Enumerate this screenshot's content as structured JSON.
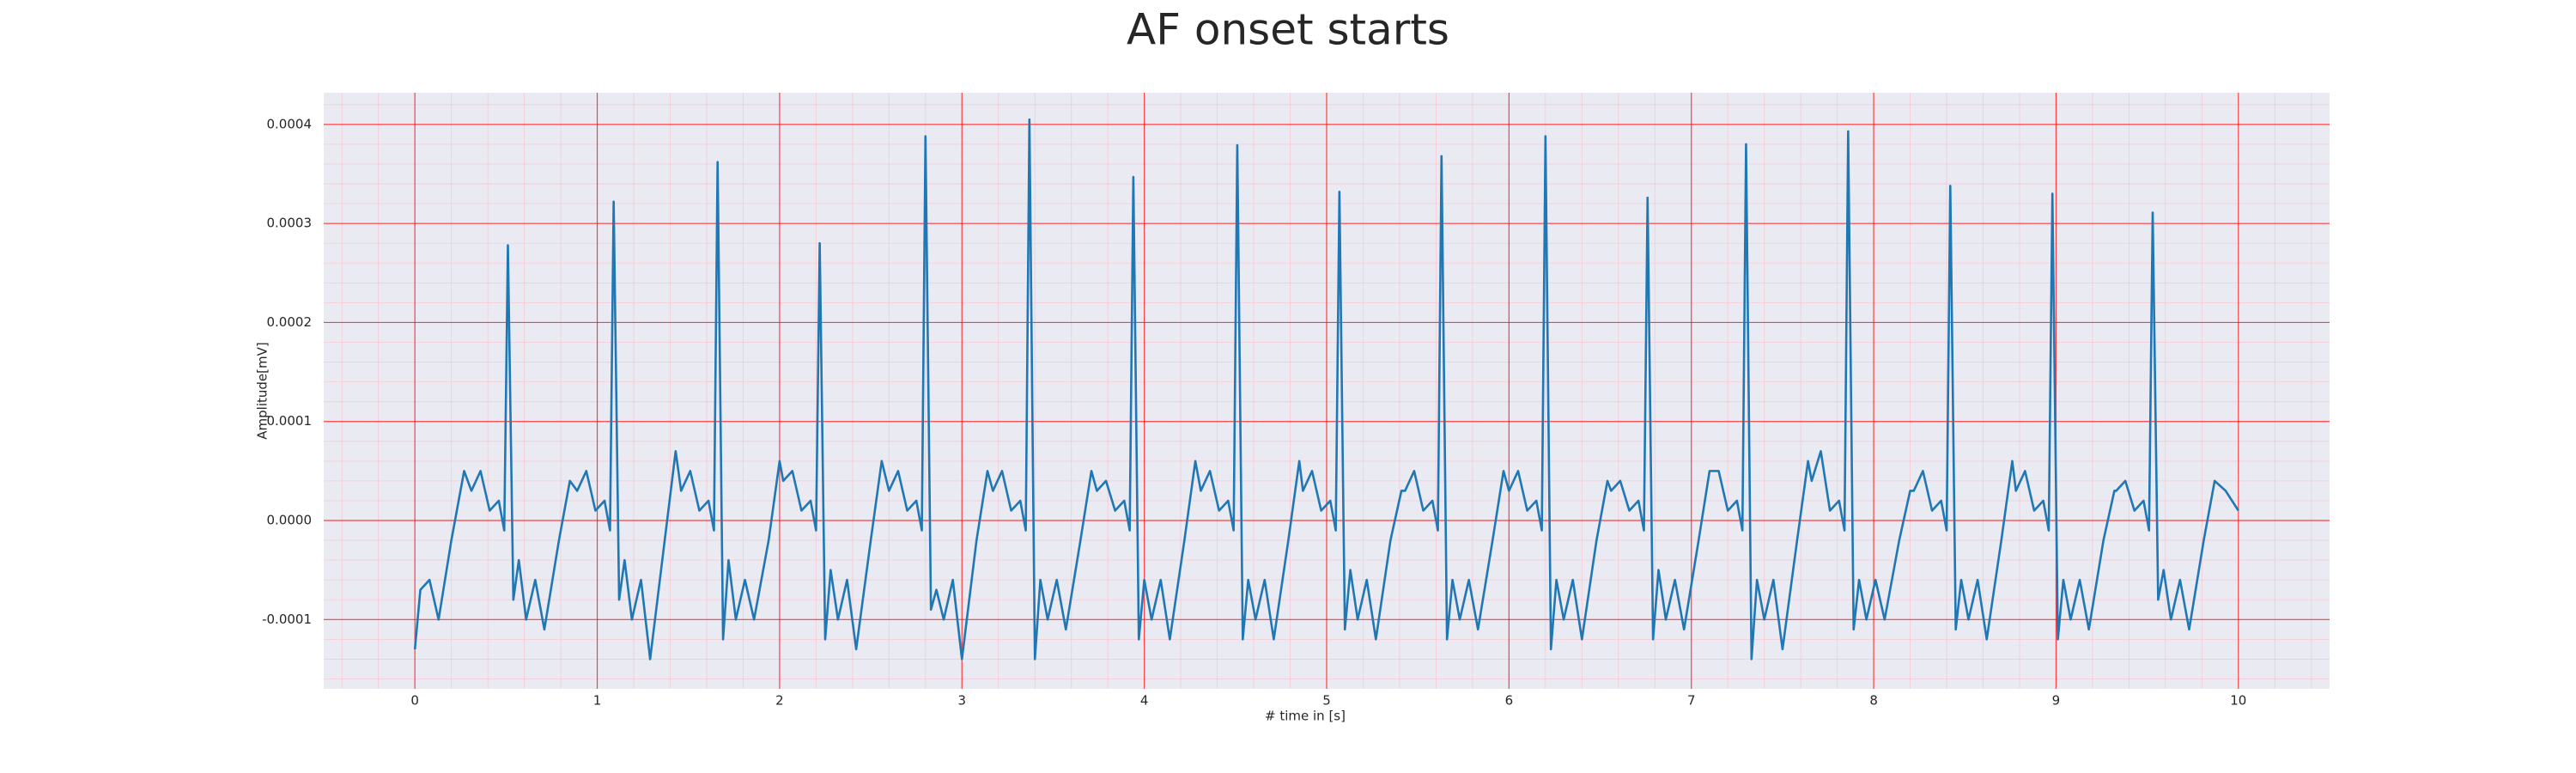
{
  "chart_data": {
    "type": "line",
    "title": "AF onset starts",
    "x_label": "# time in [s]",
    "y_label": "Amplitude[mV]",
    "color": "#1f77b4",
    "grid": true,
    "xlim": [
      -0.5,
      10.5
    ],
    "ylim": [
      -0.00017,
      0.000432
    ],
    "xticks": [
      0,
      1,
      2,
      3,
      4,
      5,
      6,
      7,
      8,
      9,
      10
    ],
    "yticks": [
      -0.0001,
      {
        "value": 0,
        "label": "0.0000"
      },
      0.0001,
      0.0002,
      0.0003,
      0.0004
    ],
    "x": [
      0,
      0.03,
      0.08,
      0.13,
      0.2,
      0.27,
      0.31,
      0.36,
      0.41,
      0.46,
      0.49,
      0.51,
      0.54,
      0.57,
      0.61,
      0.66,
      0.71,
      0.79,
      0.85,
      0.89,
      0.94,
      0.99,
      1.04,
      1.07,
      1.09,
      1.12,
      1.15,
      1.19,
      1.24,
      1.29,
      1.37,
      1.43,
      1.46,
      1.51,
      1.56,
      1.61,
      1.64,
      1.66,
      1.69,
      1.72,
      1.76,
      1.81,
      1.86,
      1.94,
      2.0,
      2.02,
      2.07,
      2.12,
      2.17,
      2.2,
      2.22,
      2.25,
      2.28,
      2.32,
      2.37,
      2.42,
      2.5,
      2.56,
      2.6,
      2.65,
      2.7,
      2.75,
      2.78,
      2.8,
      2.83,
      2.86,
      2.9,
      2.95,
      3.0,
      3.08,
      3.14,
      3.17,
      3.22,
      3.27,
      3.32,
      3.35,
      3.37,
      3.4,
      3.43,
      3.47,
      3.52,
      3.57,
      3.65,
      3.71,
      3.74,
      3.79,
      3.84,
      3.89,
      3.92,
      3.94,
      3.97,
      4.0,
      4.04,
      4.09,
      4.14,
      4.22,
      4.28,
      4.31,
      4.36,
      4.41,
      4.46,
      4.49,
      4.51,
      4.54,
      4.57,
      4.61,
      4.66,
      4.71,
      4.79,
      4.85,
      4.87,
      4.92,
      4.97,
      5.02,
      5.05,
      5.07,
      5.1,
      5.13,
      5.17,
      5.22,
      5.27,
      5.35,
      5.41,
      5.43,
      5.48,
      5.53,
      5.58,
      5.61,
      5.63,
      5.66,
      5.69,
      5.73,
      5.78,
      5.83,
      5.91,
      5.97,
      6.0,
      6.05,
      6.1,
      6.15,
      6.18,
      6.2,
      6.23,
      6.26,
      6.3,
      6.35,
      6.4,
      6.48,
      6.54,
      6.56,
      6.61,
      6.66,
      6.71,
      6.74,
      6.76,
      6.79,
      6.82,
      6.86,
      6.91,
      6.96,
      7.04,
      7.1,
      7.15,
      7.2,
      7.25,
      7.28,
      7.3,
      7.33,
      7.36,
      7.4,
      7.45,
      7.5,
      7.58,
      7.64,
      7.66,
      7.71,
      7.76,
      7.81,
      7.84,
      7.86,
      7.89,
      7.92,
      7.96,
      8.01,
      8.06,
      8.14,
      8.2,
      8.22,
      8.27,
      8.32,
      8.37,
      8.4,
      8.42,
      8.45,
      8.48,
      8.52,
      8.57,
      8.62,
      8.7,
      8.76,
      8.78,
      8.83,
      8.88,
      8.93,
      8.96,
      8.98,
      9.01,
      9.04,
      9.08,
      9.13,
      9.18,
      9.26,
      9.32,
      9.33,
      9.38,
      9.43,
      9.48,
      9.51,
      9.53,
      9.56,
      9.59,
      9.63,
      9.68,
      9.73,
      9.81,
      9.87,
      9.93,
      10.0
    ],
    "values": [
      -0.00013,
      -7e-05,
      -6e-05,
      -0.0001,
      -2e-05,
      5e-05,
      3e-05,
      5e-05,
      1e-05,
      2e-05,
      -1e-05,
      0.000278,
      -8e-05,
      -4e-05,
      -0.0001,
      -6e-05,
      -0.00011,
      -2e-05,
      4e-05,
      3e-05,
      5e-05,
      1e-05,
      2e-05,
      -1e-05,
      0.000322,
      -8e-05,
      -4e-05,
      -0.0001,
      -6e-05,
      -0.00014,
      -2e-05,
      7e-05,
      3e-05,
      5e-05,
      1e-05,
      2e-05,
      -1e-05,
      0.000362,
      -0.00012,
      -4e-05,
      -0.0001,
      -6e-05,
      -0.0001,
      -2e-05,
      6e-05,
      4e-05,
      5e-05,
      1e-05,
      2e-05,
      -1e-05,
      0.00028,
      -0.00012,
      -5e-05,
      -0.0001,
      -6e-05,
      -0.00013,
      -2e-05,
      6e-05,
      3e-05,
      5e-05,
      1e-05,
      2e-05,
      -1e-05,
      0.000388,
      -9e-05,
      -7e-05,
      -0.0001,
      -6e-05,
      -0.00014,
      -2e-05,
      5e-05,
      3e-05,
      5e-05,
      1e-05,
      2e-05,
      -1e-05,
      0.000405,
      -0.00014,
      -6e-05,
      -0.0001,
      -6e-05,
      -0.00011,
      -2e-05,
      5e-05,
      3e-05,
      4e-05,
      1e-05,
      2e-05,
      -1e-05,
      0.000347,
      -0.00012,
      -6e-05,
      -0.0001,
      -6e-05,
      -0.00012,
      -2e-05,
      6e-05,
      3e-05,
      5e-05,
      1e-05,
      2e-05,
      -1e-05,
      0.000379,
      -0.00012,
      -6e-05,
      -0.0001,
      -6e-05,
      -0.00012,
      -2e-05,
      6e-05,
      3e-05,
      5e-05,
      1e-05,
      2e-05,
      -1e-05,
      0.000332,
      -0.00011,
      -5e-05,
      -0.0001,
      -6e-05,
      -0.00012,
      -2e-05,
      3e-05,
      3e-05,
      5e-05,
      1e-05,
      2e-05,
      -1e-05,
      0.000368,
      -0.00012,
      -6e-05,
      -0.0001,
      -6e-05,
      -0.00011,
      -2e-05,
      5e-05,
      3e-05,
      5e-05,
      1e-05,
      2e-05,
      -1e-05,
      0.000388,
      -0.00013,
      -6e-05,
      -0.0001,
      -6e-05,
      -0.00012,
      -2e-05,
      4e-05,
      3e-05,
      4e-05,
      1e-05,
      2e-05,
      -1e-05,
      0.000326,
      -0.00012,
      -5e-05,
      -0.0001,
      -6e-05,
      -0.00011,
      -2e-05,
      5e-05,
      5e-05,
      1e-05,
      2e-05,
      -1e-05,
      0.00038,
      -0.00014,
      -6e-05,
      -0.0001,
      -6e-05,
      -0.00013,
      -2e-05,
      6e-05,
      4e-05,
      7e-05,
      1e-05,
      2e-05,
      -1e-05,
      0.000393,
      -0.00011,
      -6e-05,
      -0.0001,
      -6e-05,
      -0.0001,
      -2e-05,
      3e-05,
      3e-05,
      5e-05,
      1e-05,
      2e-05,
      -1e-05,
      0.000338,
      -0.00011,
      -6e-05,
      -0.0001,
      -6e-05,
      -0.00012,
      -2e-05,
      6e-05,
      3e-05,
      5e-05,
      1e-05,
      2e-05,
      -1e-05,
      0.00033,
      -0.00012,
      -6e-05,
      -0.0001,
      -6e-05,
      -0.00011,
      -2e-05,
      3e-05,
      3e-05,
      4e-05,
      1e-05,
      2e-05,
      -1e-05,
      0.000311,
      -8e-05,
      -5e-05,
      -0.0001,
      -6e-05,
      -0.00011,
      -2e-05,
      4e-05,
      3e-05,
      1e-05
    ]
  }
}
